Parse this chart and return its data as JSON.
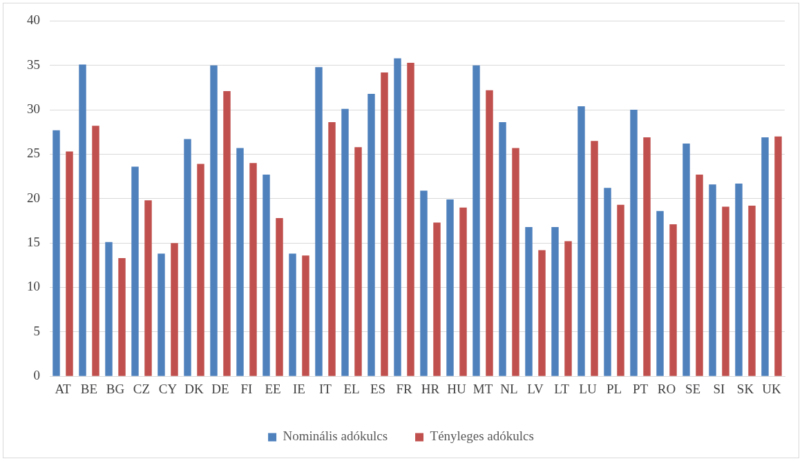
{
  "chart_data": {
    "type": "bar",
    "categories": [
      "AT",
      "BE",
      "BG",
      "CZ",
      "CY",
      "DK",
      "DE",
      "FI",
      "EE",
      "IE",
      "IT",
      "EL",
      "ES",
      "FR",
      "HR",
      "HU",
      "MT",
      "NL",
      "LV",
      "LT",
      "LU",
      "PL",
      "PT",
      "RO",
      "SE",
      "SI",
      "SK",
      "UK"
    ],
    "series": [
      {
        "name": "Nominális adókulcs",
        "color": "#4f81bd",
        "values": [
          27.7,
          35.1,
          15.1,
          23.6,
          13.8,
          26.7,
          35.0,
          25.7,
          22.7,
          13.8,
          34.8,
          30.1,
          31.8,
          35.8,
          20.9,
          19.9,
          35.0,
          28.6,
          16.8,
          16.8,
          30.4,
          21.2,
          30.0,
          18.6,
          26.2,
          21.6,
          21.7,
          26.9
        ]
      },
      {
        "name": "Tényleges adókulcs",
        "color": "#c0504d",
        "values": [
          25.3,
          28.2,
          13.3,
          19.8,
          15.0,
          23.9,
          32.1,
          24.0,
          17.8,
          13.6,
          28.6,
          25.8,
          34.2,
          35.3,
          17.3,
          19.0,
          32.2,
          25.7,
          14.2,
          15.2,
          26.5,
          19.3,
          26.9,
          17.1,
          22.7,
          19.1,
          19.2,
          27.0
        ]
      }
    ],
    "ylim": [
      0,
      40
    ],
    "yticks": [
      0,
      5,
      10,
      15,
      20,
      25,
      30,
      35,
      40
    ],
    "grid": "y",
    "legend": "bottom"
  }
}
